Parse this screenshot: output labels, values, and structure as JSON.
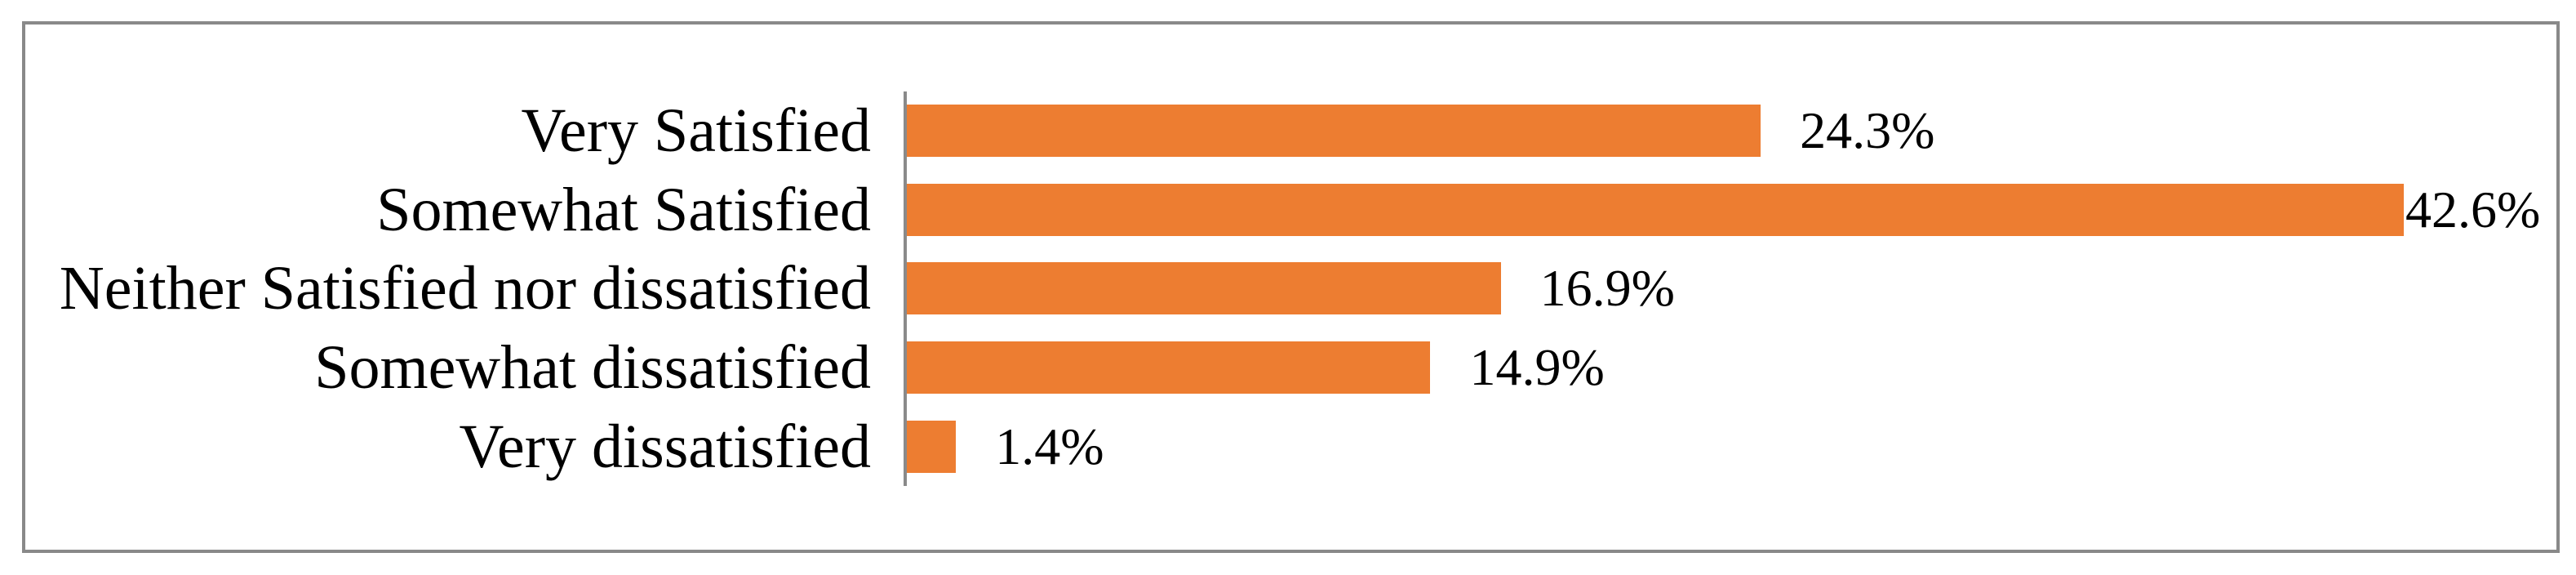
{
  "chart_data": {
    "type": "bar",
    "orientation": "horizontal",
    "title": "",
    "xlabel": "",
    "ylabel": "",
    "categories": [
      "Very Satisfied",
      "Somewhat Satisfied",
      "Neither Satisfied nor dissatisfied",
      "Somewhat dissatisfied",
      "Very dissatisfied"
    ],
    "values": [
      24.3,
      42.6,
      16.9,
      14.9,
      1.4
    ],
    "value_labels": [
      "24.3%",
      "42.6%",
      "16.9%",
      "14.9%",
      "1.4%"
    ],
    "xlim_estimated": [
      0,
      45
    ],
    "grid": false,
    "legend": false,
    "tick_labels_visible": false,
    "colors": {
      "bar": "#ED7D31",
      "axis_line": "#8A8A8A",
      "frame_border": "#898989",
      "label_text": "#000000",
      "background": "#FFFFFF"
    }
  }
}
